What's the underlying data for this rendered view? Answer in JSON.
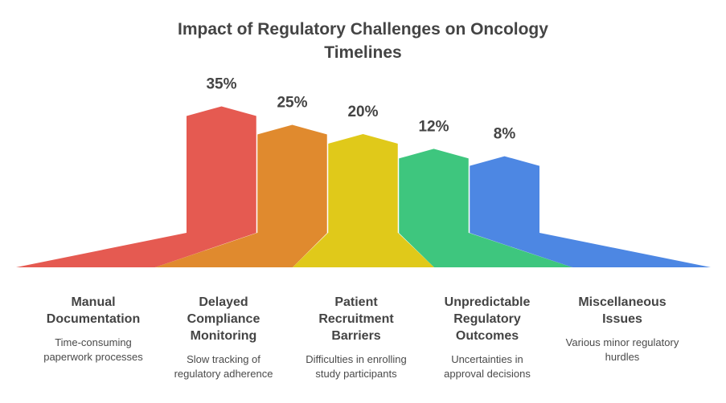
{
  "title_lines": [
    "Impact of Regulatory Challenges on Oncology",
    "Timelines"
  ],
  "chart_data": {
    "type": "bar",
    "title": "Impact of Regulatory Challenges on Oncology Timelines",
    "categories": [
      "Manual Documentation",
      "Delayed Compliance Monitoring",
      "Patient Recruitment Barriers",
      "Unpredictable Regulatory Outcomes",
      "Miscellaneous Issues"
    ],
    "values": [
      35,
      25,
      20,
      12,
      8
    ],
    "value_labels": [
      "35%",
      "25%",
      "20%",
      "12%",
      "8%"
    ],
    "unit": "%",
    "colors": [
      "#e55a51",
      "#e08a2e",
      "#e0c91a",
      "#3ec67e",
      "#4d87e3"
    ]
  },
  "items": [
    {
      "title_lines": [
        "Manual",
        "Documentation"
      ],
      "desc_lines": [
        "Time-consuming",
        "paperwork processes"
      ]
    },
    {
      "title_lines": [
        "Delayed",
        "Compliance",
        "Monitoring"
      ],
      "desc_lines": [
        "Slow tracking of",
        "regulatory adherence"
      ]
    },
    {
      "title_lines": [
        "Patient",
        "Recruitment",
        "Barriers"
      ],
      "desc_lines": [
        "Difficulties in enrolling",
        "study participants"
      ]
    },
    {
      "title_lines": [
        "Unpredictable",
        "Regulatory",
        "Outcomes"
      ],
      "desc_lines": [
        "Uncertainties in",
        "approval decisions"
      ]
    },
    {
      "title_lines": [
        "Miscellaneous",
        "Issues"
      ],
      "desc_lines": [
        "Various minor regulatory",
        "hurdles"
      ]
    }
  ]
}
